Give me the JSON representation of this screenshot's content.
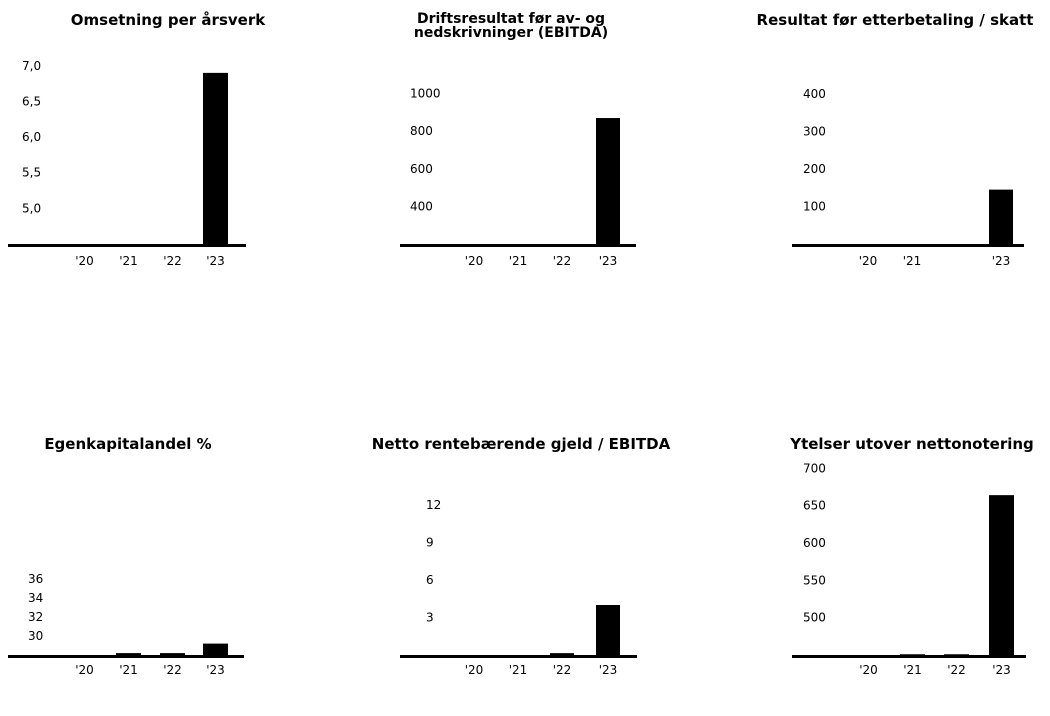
{
  "chart_data": [
    {
      "type": "bar",
      "title": "Omsetning per årsverk",
      "categories": [
        "'20",
        "'21",
        "'22",
        "'23"
      ],
      "values": [
        4.5,
        4.5,
        4.5,
        6.9
      ],
      "baseline": 4.5,
      "ylim": [
        4.5,
        7.25
      ],
      "yticks": [
        5.0,
        5.5,
        6.0,
        6.5,
        7.0
      ],
      "ytick_labels": [
        "5,0",
        "5,5",
        "6,0",
        "6,5",
        "7,0"
      ],
      "bar_color": "#000000"
    },
    {
      "type": "bar",
      "title": "Driftsresultat før av- og nedskrivninger (EBITDA)",
      "categories": [
        "'20",
        "'21",
        "'22",
        "'23"
      ],
      "values": [
        200,
        200,
        200,
        870
      ],
      "baseline": 200,
      "ylim": [
        200,
        1200
      ],
      "yticks": [
        400,
        600,
        800,
        1000
      ],
      "ytick_labels": [
        "400",
        "600",
        "800",
        "1000"
      ],
      "bar_color": "#000000"
    },
    {
      "type": "bar",
      "title": "Resultat før etterbetaling / skatt",
      "categories": [
        "'20",
        "'21",
        "",
        "'23"
      ],
      "values": [
        0,
        0,
        0,
        145
      ],
      "baseline": 0,
      "ylim": [
        0,
        500
      ],
      "yticks": [
        100,
        200,
        300,
        400
      ],
      "ytick_labels": [
        "100",
        "200",
        "300",
        "400"
      ],
      "bar_color": "#000000"
    },
    {
      "type": "bar",
      "title": "Egenkapitalandel %",
      "categories": [
        "'20",
        "'21",
        "'22",
        "'23"
      ],
      "values": [
        28,
        28.2,
        28.2,
        29.2
      ],
      "baseline": 28,
      "ylim": [
        28,
        38
      ],
      "yticks": [
        30,
        32,
        34,
        36
      ],
      "ytick_labels": [
        "30",
        "32",
        "34",
        "36"
      ],
      "bar_color": "#000000"
    },
    {
      "type": "bar",
      "title": "Netto rentebærende gjeld / EBITDA",
      "categories": [
        "'20",
        "'21",
        "'22",
        "'23"
      ],
      "values": [
        0,
        0,
        0.15,
        4
      ],
      "baseline": 0,
      "ylim": [
        0,
        15
      ],
      "yticks": [
        3,
        6,
        9,
        12
      ],
      "ytick_labels": [
        "3",
        "6",
        "9",
        "12"
      ],
      "bar_color": "#000000"
    },
    {
      "type": "bar",
      "title": "Ytelser utover nettonotering",
      "categories": [
        "'20",
        "'21",
        "'22",
        "'23"
      ],
      "values": [
        450,
        451,
        451,
        664
      ],
      "baseline": 450,
      "ylim": [
        450,
        700
      ],
      "yticks": [
        500,
        550,
        600,
        650,
        700
      ],
      "ytick_labels": [
        "500",
        "550",
        "600",
        "650",
        "700"
      ],
      "bar_color": "#000000"
    }
  ]
}
